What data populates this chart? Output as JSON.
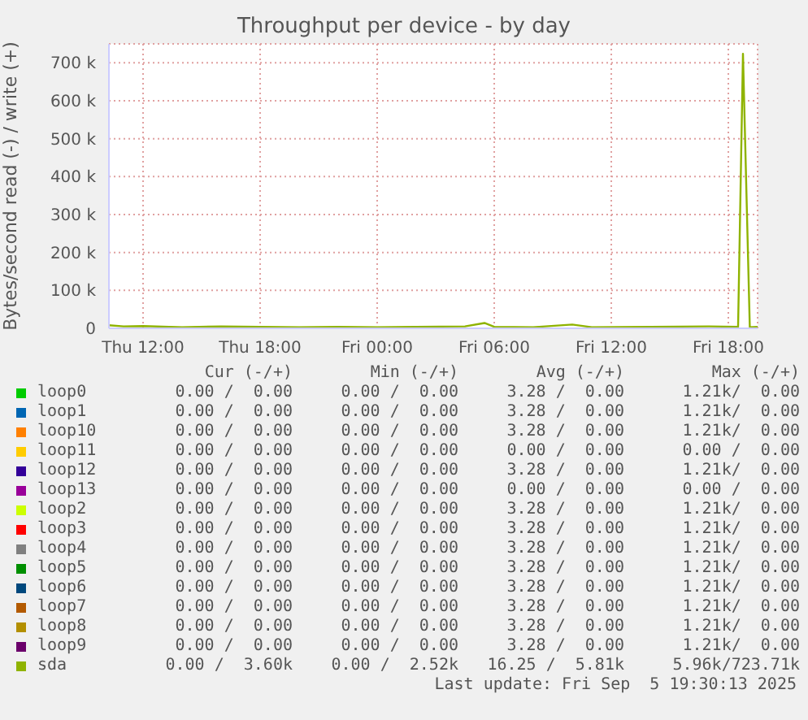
{
  "chart_data": {
    "type": "line",
    "title": "Throughput per device - by day",
    "ylabel": "Bytes/second read (-) / write (+)",
    "xlim": [
      "2025-09-04T10:15",
      "2025-09-05T19:30"
    ],
    "xticks": [
      {
        "value": "2025-09-04T12:00",
        "label": "Thu 12:00"
      },
      {
        "value": "2025-09-04T18:00",
        "label": "Thu 18:00"
      },
      {
        "value": "2025-09-05T00:00",
        "label": "Fri 00:00"
      },
      {
        "value": "2025-09-05T06:00",
        "label": "Fri 06:00"
      },
      {
        "value": "2025-09-05T12:00",
        "label": "Fri 12:00"
      },
      {
        "value": "2025-09-05T18:00",
        "label": "Fri 18:00"
      }
    ],
    "ylim": [
      0,
      750000
    ],
    "yticks": [
      0,
      {
        "value": 100000,
        "label": "100 k"
      },
      {
        "value": 200000,
        "label": "200 k"
      },
      {
        "value": 300000,
        "label": "300 k"
      },
      {
        "value": 400000,
        "label": "400 k"
      },
      {
        "value": 500000,
        "label": "500 k"
      },
      {
        "value": 600000,
        "label": "600 k"
      },
      {
        "value": 700000,
        "label": "700 k"
      }
    ],
    "grid": true,
    "legend": "bottom",
    "marker": "none",
    "series": [
      {
        "name": "loop0",
        "color": "#00cc00",
        "values": [
          null,
          null
        ]
      },
      {
        "name": "loop1",
        "color": "#0066b3",
        "values": [
          null,
          null
        ]
      },
      {
        "name": "loop10",
        "color": "#ff8000",
        "values": [
          null,
          null
        ]
      },
      {
        "name": "loop11",
        "color": "#ffcc00",
        "values": [
          null,
          null
        ]
      },
      {
        "name": "loop12",
        "color": "#330099",
        "values": [
          null,
          null
        ]
      },
      {
        "name": "loop13",
        "color": "#990099",
        "values": [
          null,
          null
        ]
      },
      {
        "name": "loop2",
        "color": "#ccff00",
        "values": [
          null,
          null
        ]
      },
      {
        "name": "loop3",
        "color": "#ff0000",
        "values": [
          null,
          null
        ]
      },
      {
        "name": "loop4",
        "color": "#808080",
        "values": [
          null,
          null
        ]
      },
      {
        "name": "loop5",
        "color": "#008f00",
        "values": [
          null,
          null
        ]
      },
      {
        "name": "loop6",
        "color": "#00487d",
        "values": [
          null,
          null
        ]
      },
      {
        "name": "loop7",
        "color": "#b35a00",
        "values": [
          null,
          null
        ]
      },
      {
        "name": "loop8",
        "color": "#b38f00",
        "values": [
          null,
          null
        ]
      },
      {
        "name": "loop9",
        "color": "#6b006b",
        "values": [
          null,
          null
        ]
      },
      {
        "name": "sda",
        "color": "#8fb300",
        "x": [
          "2025-09-04T10:15",
          "2025-09-04T11:00",
          "2025-09-04T12:00",
          "2025-09-04T14:00",
          "2025-09-04T16:00",
          "2025-09-04T18:00",
          "2025-09-04T20:00",
          "2025-09-04T22:00",
          "2025-09-05T00:00",
          "2025-09-05T02:00",
          "2025-09-05T04:30",
          "2025-09-05T05:30",
          "2025-09-05T06:00",
          "2025-09-05T08:00",
          "2025-09-05T10:00",
          "2025-09-05T11:00",
          "2025-09-05T14:00",
          "2025-09-05T17:00",
          "2025-09-05T18:30",
          "2025-09-05T18:45",
          "2025-09-05T19:06",
          "2025-09-05T19:30"
        ],
        "values": [
          8000,
          5000,
          6000,
          3000,
          5000,
          4000,
          3000,
          4000,
          3000,
          4000,
          5000,
          14000,
          4000,
          3000,
          10000,
          3000,
          4000,
          5000,
          4000,
          724000,
          3000,
          4000
        ]
      }
    ],
    "annotations": [
      "Cur (-/+)",
      "Min (-/+)",
      "Avg (-/+)",
      "Max (-/+)",
      "0.00 /  0.00",
      "0.00 /  0.00",
      "3.28 /  0.00",
      "1.21k/  0.00",
      "0.00 /  0.00",
      "0.00 /  0.00",
      "3.28 /  0.00",
      "1.21k/  0.00",
      "0.00 /  0.00",
      "0.00 /  0.00",
      "3.28 /  0.00",
      "1.21k/  0.00",
      "0.00 /  0.00",
      "0.00 /  0.00",
      "0.00 /  0.00",
      "0.00 /  0.00",
      "0.00 /  0.00",
      "0.00 /  0.00",
      "3.28 /  0.00",
      "1.21k/  0.00",
      "0.00 /  0.00",
      "0.00 /  0.00",
      "0.00 /  0.00",
      "0.00 /  0.00",
      "0.00 /  0.00",
      "0.00 /  0.00",
      "3.28 /  0.00",
      "1.21k/  0.00",
      "0.00 /  0.00",
      "0.00 /  0.00",
      "3.28 /  0.00",
      "1.21k/  0.00",
      "0.00 /  0.00",
      "0.00 /  0.00",
      "3.28 /  0.00",
      "1.21k/  0.00",
      "0.00 /  0.00",
      "0.00 /  0.00",
      "3.28 /  0.00",
      "1.21k/  0.00",
      "0.00 /  0.00",
      "0.00 /  0.00",
      "3.28 /  0.00",
      "1.21k/  0.00",
      "0.00 /  0.00",
      "0.00 /  0.00",
      "3.28 /  0.00",
      "1.21k/  0.00",
      "0.00 /  0.00",
      "0.00 /  0.00",
      "3.28 /  0.00",
      "1.21k/  0.00",
      "0.00 /  0.00",
      "0.00 /  0.00",
      "3.28 /  0.00",
      "1.21k/  0.00",
      "0.00 /  3.60k",
      "0.00 /  2.52k",
      "16.25 /  5.81k",
      "5.96k/723.71k",
      "Last update: Fri Sep  5 19:30:13 2025"
    ]
  }
}
